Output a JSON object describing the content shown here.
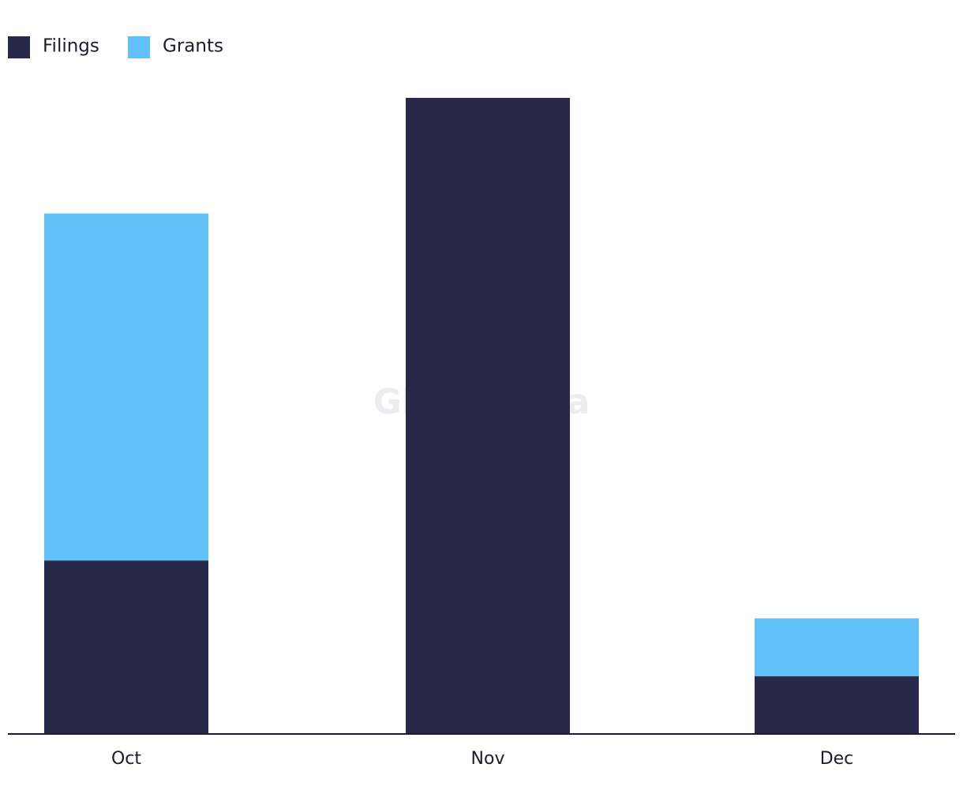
{
  "chart_data": {
    "type": "stacked-bar",
    "watermark": "GlobalData",
    "categories": [
      "Oct",
      "Nov",
      "Dec"
    ],
    "series": [
      {
        "name": "Filings",
        "color": "#27284a",
        "values": [
          3,
          11,
          1
        ]
      },
      {
        "name": "Grants",
        "color": "#61c0f8",
        "values": [
          6,
          0,
          1
        ]
      }
    ],
    "ylim": [
      0,
      11
    ]
  }
}
